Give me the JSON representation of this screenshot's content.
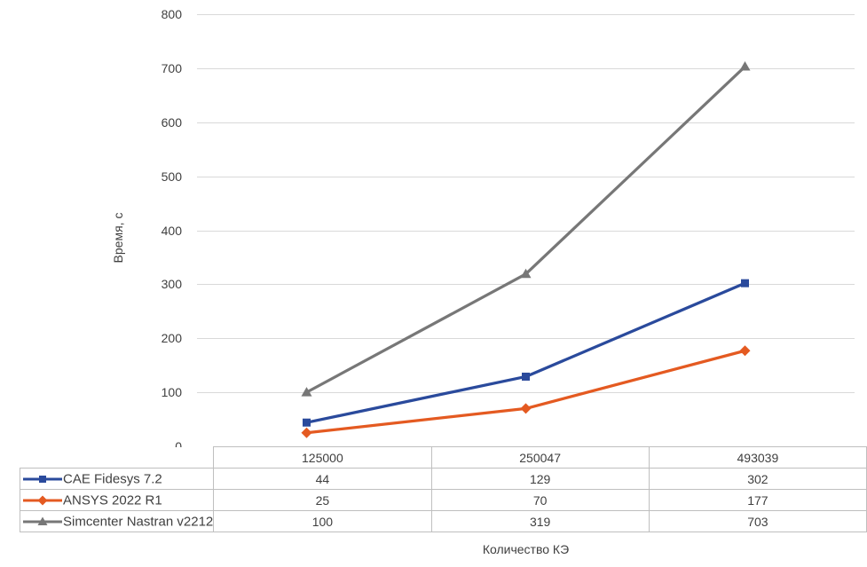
{
  "chart_data": {
    "type": "line",
    "title": "",
    "categories": [
      "125000",
      "250047",
      "493039"
    ],
    "series": [
      {
        "name": "CAE Fidesys 7.2",
        "marker": "square",
        "color": "#2a4a9c",
        "values": [
          44,
          129,
          302
        ]
      },
      {
        "name": "ANSYS 2022 R1",
        "marker": "diamond",
        "color": "#e45a21",
        "values": [
          25,
          70,
          177
        ]
      },
      {
        "name": "Simcenter Nastran v2212",
        "marker": "triangle",
        "color": "#777777",
        "values": [
          100,
          319,
          703
        ]
      }
    ],
    "xlabel": "Количество КЭ",
    "ylabel": "Время, с",
    "ylim": [
      0,
      800
    ],
    "y_ticks": [
      0,
      100,
      200,
      300,
      400,
      500,
      600,
      700,
      800
    ],
    "grid": true,
    "legend_position": "table-left",
    "colors": {
      "gridline": "#d9d9d9",
      "table_border": "#bfbfbf",
      "text": "#3f3f3f",
      "background": "#ffffff"
    }
  }
}
